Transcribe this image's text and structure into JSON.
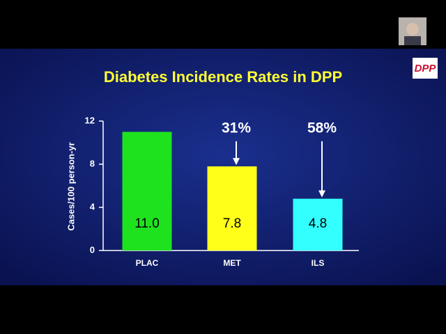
{
  "chart_data": {
    "type": "bar",
    "title": "Diabetes Incidence Rates in DPP",
    "y_label": "Cases/100 person-yr",
    "categories": [
      "PLAC",
      "MET",
      "ILS"
    ],
    "values": [
      11,
      7.8,
      4.8
    ],
    "value_labels": [
      "11.0",
      "7.8",
      "4.8"
    ],
    "colors": [
      "#1fe21f",
      "#ffff1a",
      "#33ffff"
    ],
    "annotations": [
      null,
      "31%",
      "58%"
    ],
    "ylim": [
      0,
      12
    ],
    "yticks": [
      0,
      4,
      8,
      12
    ]
  },
  "logo": "DPP"
}
